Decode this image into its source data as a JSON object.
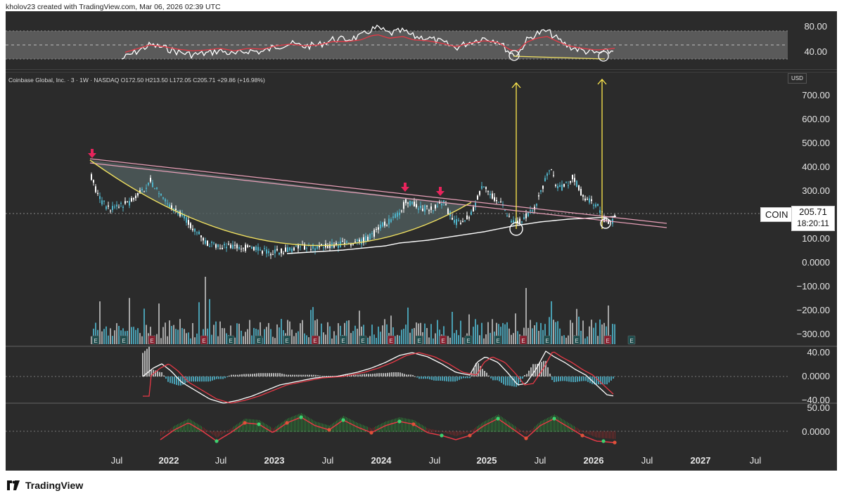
{
  "header": {
    "attribution": "kholov23 created with TradingView.com, Mar 06, 2026 02:39 UTC"
  },
  "legend": {
    "symbol_line": "Coinbase Global, Inc. · 3 · 1W · NASDAQ  O172.50  H213.50  L172.05  C205.71  +29.86 (+16.98%)"
  },
  "ticker": {
    "symbol": "COIN",
    "last_price": "205.71",
    "countdown": "18:20:11"
  },
  "currency": "USD",
  "rsi_axis": [
    "80.00",
    "40.00"
  ],
  "price_axis": [
    "700.00",
    "600.00",
    "500.00",
    "400.00",
    "300.00",
    "100.00",
    "0.0000",
    "−100.00",
    "−200.00",
    "−300.00"
  ],
  "macd_axis": [
    "40.00",
    "0.0000",
    "−40.00"
  ],
  "osc_axis": [
    "50.00",
    "0.0000"
  ],
  "time_axis": [
    {
      "label": "Jul",
      "year": false
    },
    {
      "label": "2022",
      "year": true
    },
    {
      "label": "Jul",
      "year": false
    },
    {
      "label": "2023",
      "year": true
    },
    {
      "label": "Jul",
      "year": false
    },
    {
      "label": "2024",
      "year": true
    },
    {
      "label": "Jul",
      "year": false
    },
    {
      "label": "2025",
      "year": true
    },
    {
      "label": "Jul",
      "year": false
    },
    {
      "label": "2026",
      "year": true
    },
    {
      "label": "Jul",
      "year": false
    },
    {
      "label": "2027",
      "year": true
    },
    {
      "label": "Jul",
      "year": false
    }
  ],
  "earnings_marker": "E",
  "brand": {
    "name": "TradingView"
  },
  "colors": {
    "background": "#2b2b2b",
    "candle_up": "#ffffff",
    "candle_down": "#4fb3c9",
    "trendline": "#e8a0b8",
    "cup_curve": "#f0e060",
    "arrows": "#ffe94d",
    "markers": "#e8245c",
    "ma_line": "#ffffff",
    "signal_line": "#e63946"
  }
}
